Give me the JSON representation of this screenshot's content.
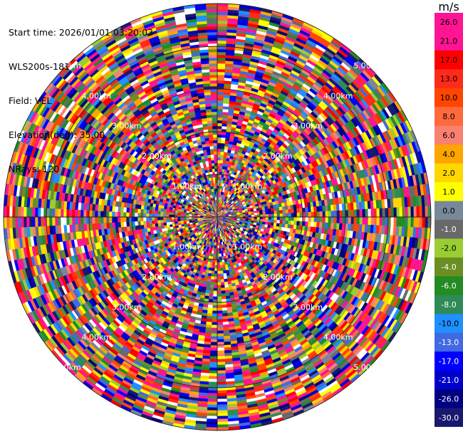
{
  "info": {
    "start_time": "Start time: 2026/01/01 03:20:03",
    "site": "WLS200s-181",
    "field": "Field: VEL",
    "elevation": "Elevation(deg): 35.00",
    "nrays": "NRays: 120"
  },
  "chart_data": {
    "type": "heatmap",
    "projection": "polar-ppi",
    "field": "VEL",
    "units": "m/s",
    "nrays": 120,
    "range_ring_labels": [
      "1.00km",
      "2.00km",
      "3.00km",
      "4.00km",
      "5.00km"
    ],
    "colorbar": {
      "title": "m/s",
      "ticks": [
        "26.0",
        "21.0",
        "17.0",
        "13.0",
        "10.0",
        "8.0",
        "6.0",
        "4.0",
        "2.0",
        "1.0",
        "0.0",
        "-1.0",
        "-2.0",
        "-4.0",
        "-6.0",
        "-8.0",
        "-10.0",
        "-13.0",
        "-17.0",
        "-21.0",
        "-26.0",
        "-30.0"
      ],
      "colors": [
        "#ff1493",
        "#ff1493",
        "#ff0000",
        "#ff2a1a",
        "#ff4500",
        "#ff6a3c",
        "#fa8072",
        "#ffa500",
        "#ffd700",
        "#ffff00",
        "#778899",
        "#696969",
        "#9acd32",
        "#6b8e23",
        "#228b22",
        "#2e8b57",
        "#1e90ff",
        "#4169e1",
        "#0000ff",
        "#0000cd",
        "#000080",
        "#191970"
      ]
    }
  }
}
